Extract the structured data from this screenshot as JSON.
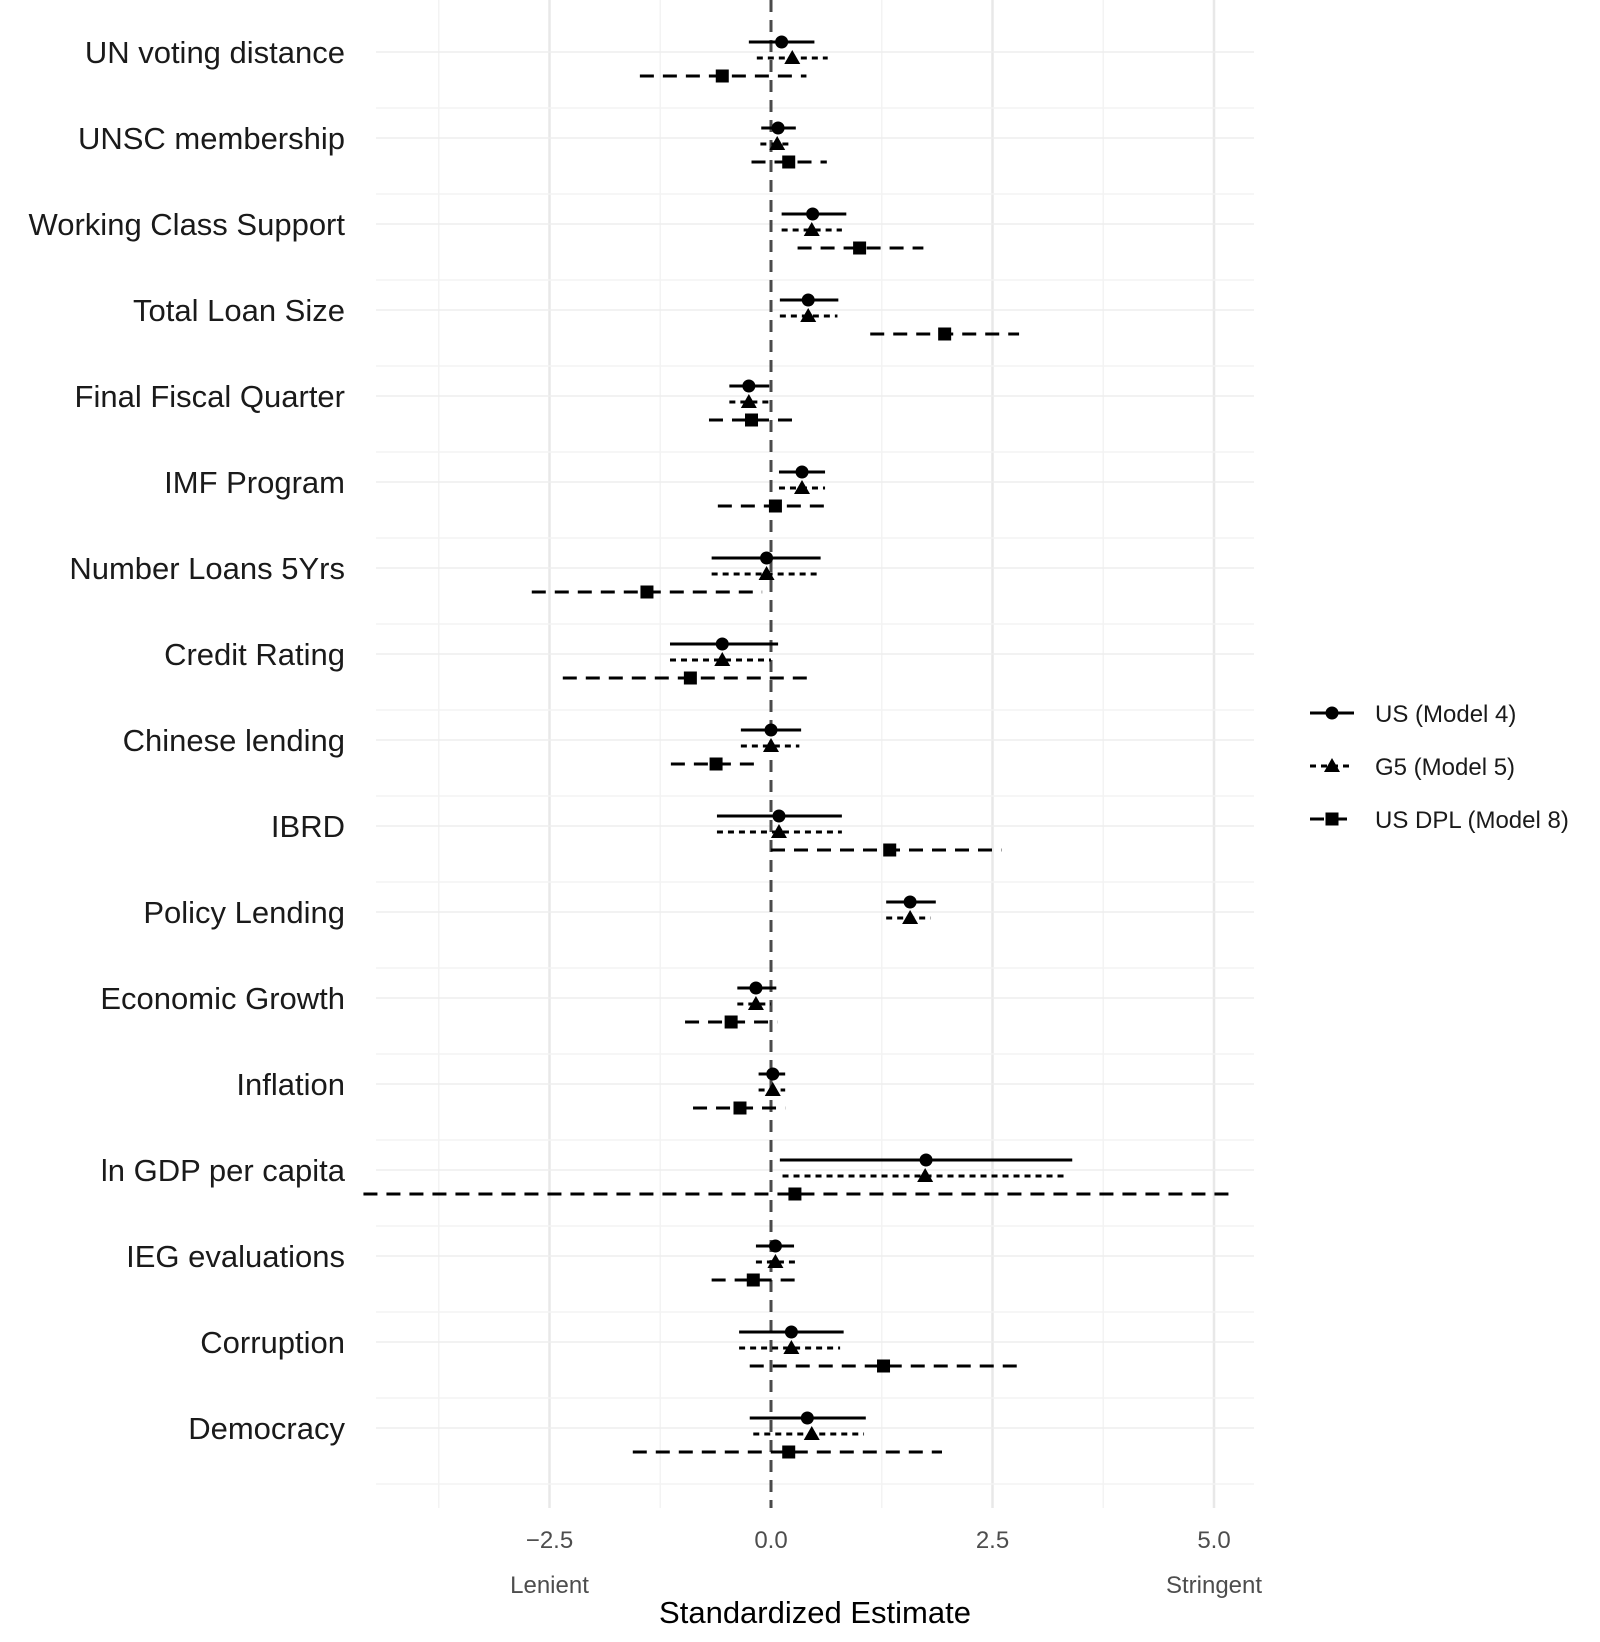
{
  "chart_data": {
    "type": "scatter",
    "subtype": "coefficient-plot",
    "xlabel": "Standardized Estimate",
    "x_ticks": [
      -2.5,
      0.0,
      2.5,
      5.0
    ],
    "x_tick_labels": [
      "−2.5",
      "0.0",
      "2.5",
      "5.0"
    ],
    "xlim": [
      -4.6,
      5.6
    ],
    "side_labels": {
      "left": "Lenient",
      "right": "Stringent"
    },
    "reference_line": 0,
    "grid": true,
    "legend_position": "right",
    "categories": [
      "UN voting distance",
      "UNSC membership",
      "Working Class Support",
      "Total Loan Size",
      "Final Fiscal Quarter",
      "IMF Program",
      "Number Loans 5Yrs",
      "Credit Rating",
      "Chinese lending",
      "IBRD",
      "Policy Lending",
      "Economic Growth",
      "Inflation",
      "ln GDP per capita",
      "IEG evaluations",
      "Corruption",
      "Democracy"
    ],
    "series": [
      {
        "name": "US (Model 4)",
        "marker": "circle",
        "linestyle": "solid",
        "estimates": [
          0.12,
          0.08,
          0.47,
          0.42,
          -0.25,
          0.35,
          -0.05,
          -0.55,
          0.0,
          0.09,
          1.57,
          -0.17,
          0.02,
          1.75,
          0.05,
          0.23,
          0.41
        ],
        "lower": [
          -0.25,
          -0.11,
          0.12,
          0.1,
          -0.47,
          0.09,
          -0.67,
          -1.14,
          -0.34,
          -0.61,
          1.3,
          -0.38,
          -0.14,
          0.1,
          -0.17,
          -0.36,
          -0.24
        ],
        "upper": [
          0.49,
          0.28,
          0.85,
          0.76,
          -0.02,
          0.61,
          0.56,
          0.08,
          0.34,
          0.8,
          1.86,
          0.06,
          0.16,
          3.4,
          0.26,
          0.82,
          1.07
        ]
      },
      {
        "name": "G5 (Model 5)",
        "marker": "triangle",
        "linestyle": "dotted",
        "estimates": [
          0.24,
          0.07,
          0.46,
          0.42,
          -0.25,
          0.35,
          -0.05,
          -0.55,
          0.0,
          0.09,
          1.57,
          -0.17,
          0.02,
          1.74,
          0.05,
          0.23,
          0.46
        ],
        "lower": [
          -0.16,
          -0.12,
          0.12,
          0.1,
          -0.47,
          0.09,
          -0.67,
          -1.14,
          -0.34,
          -0.61,
          1.3,
          -0.38,
          -0.14,
          0.13,
          -0.17,
          -0.36,
          -0.2
        ],
        "upper": [
          0.64,
          0.25,
          0.8,
          0.75,
          0.0,
          0.61,
          0.57,
          0.0,
          0.32,
          0.8,
          1.8,
          0.0,
          0.16,
          3.33,
          0.27,
          0.78,
          1.05
        ]
      },
      {
        "name": "US DPL (Model 8)",
        "marker": "square",
        "linestyle": "dashed",
        "estimates": [
          -0.55,
          0.2,
          1.0,
          1.96,
          -0.22,
          0.05,
          -1.4,
          -0.91,
          -0.62,
          1.34,
          null,
          -0.45,
          -0.35,
          0.27,
          -0.2,
          1.27,
          0.2
        ],
        "lower": [
          -1.48,
          -0.22,
          0.3,
          1.12,
          -0.7,
          -0.6,
          -2.7,
          -2.35,
          -1.13,
          0.0,
          null,
          -0.97,
          -0.88,
          -4.6,
          -0.67,
          -0.24,
          -1.56
        ],
        "upper": [
          0.4,
          0.63,
          1.72,
          2.8,
          0.28,
          0.68,
          -0.1,
          0.47,
          -0.1,
          2.6,
          null,
          0.07,
          0.16,
          5.2,
          0.3,
          2.78,
          1.93
        ]
      }
    ]
  }
}
